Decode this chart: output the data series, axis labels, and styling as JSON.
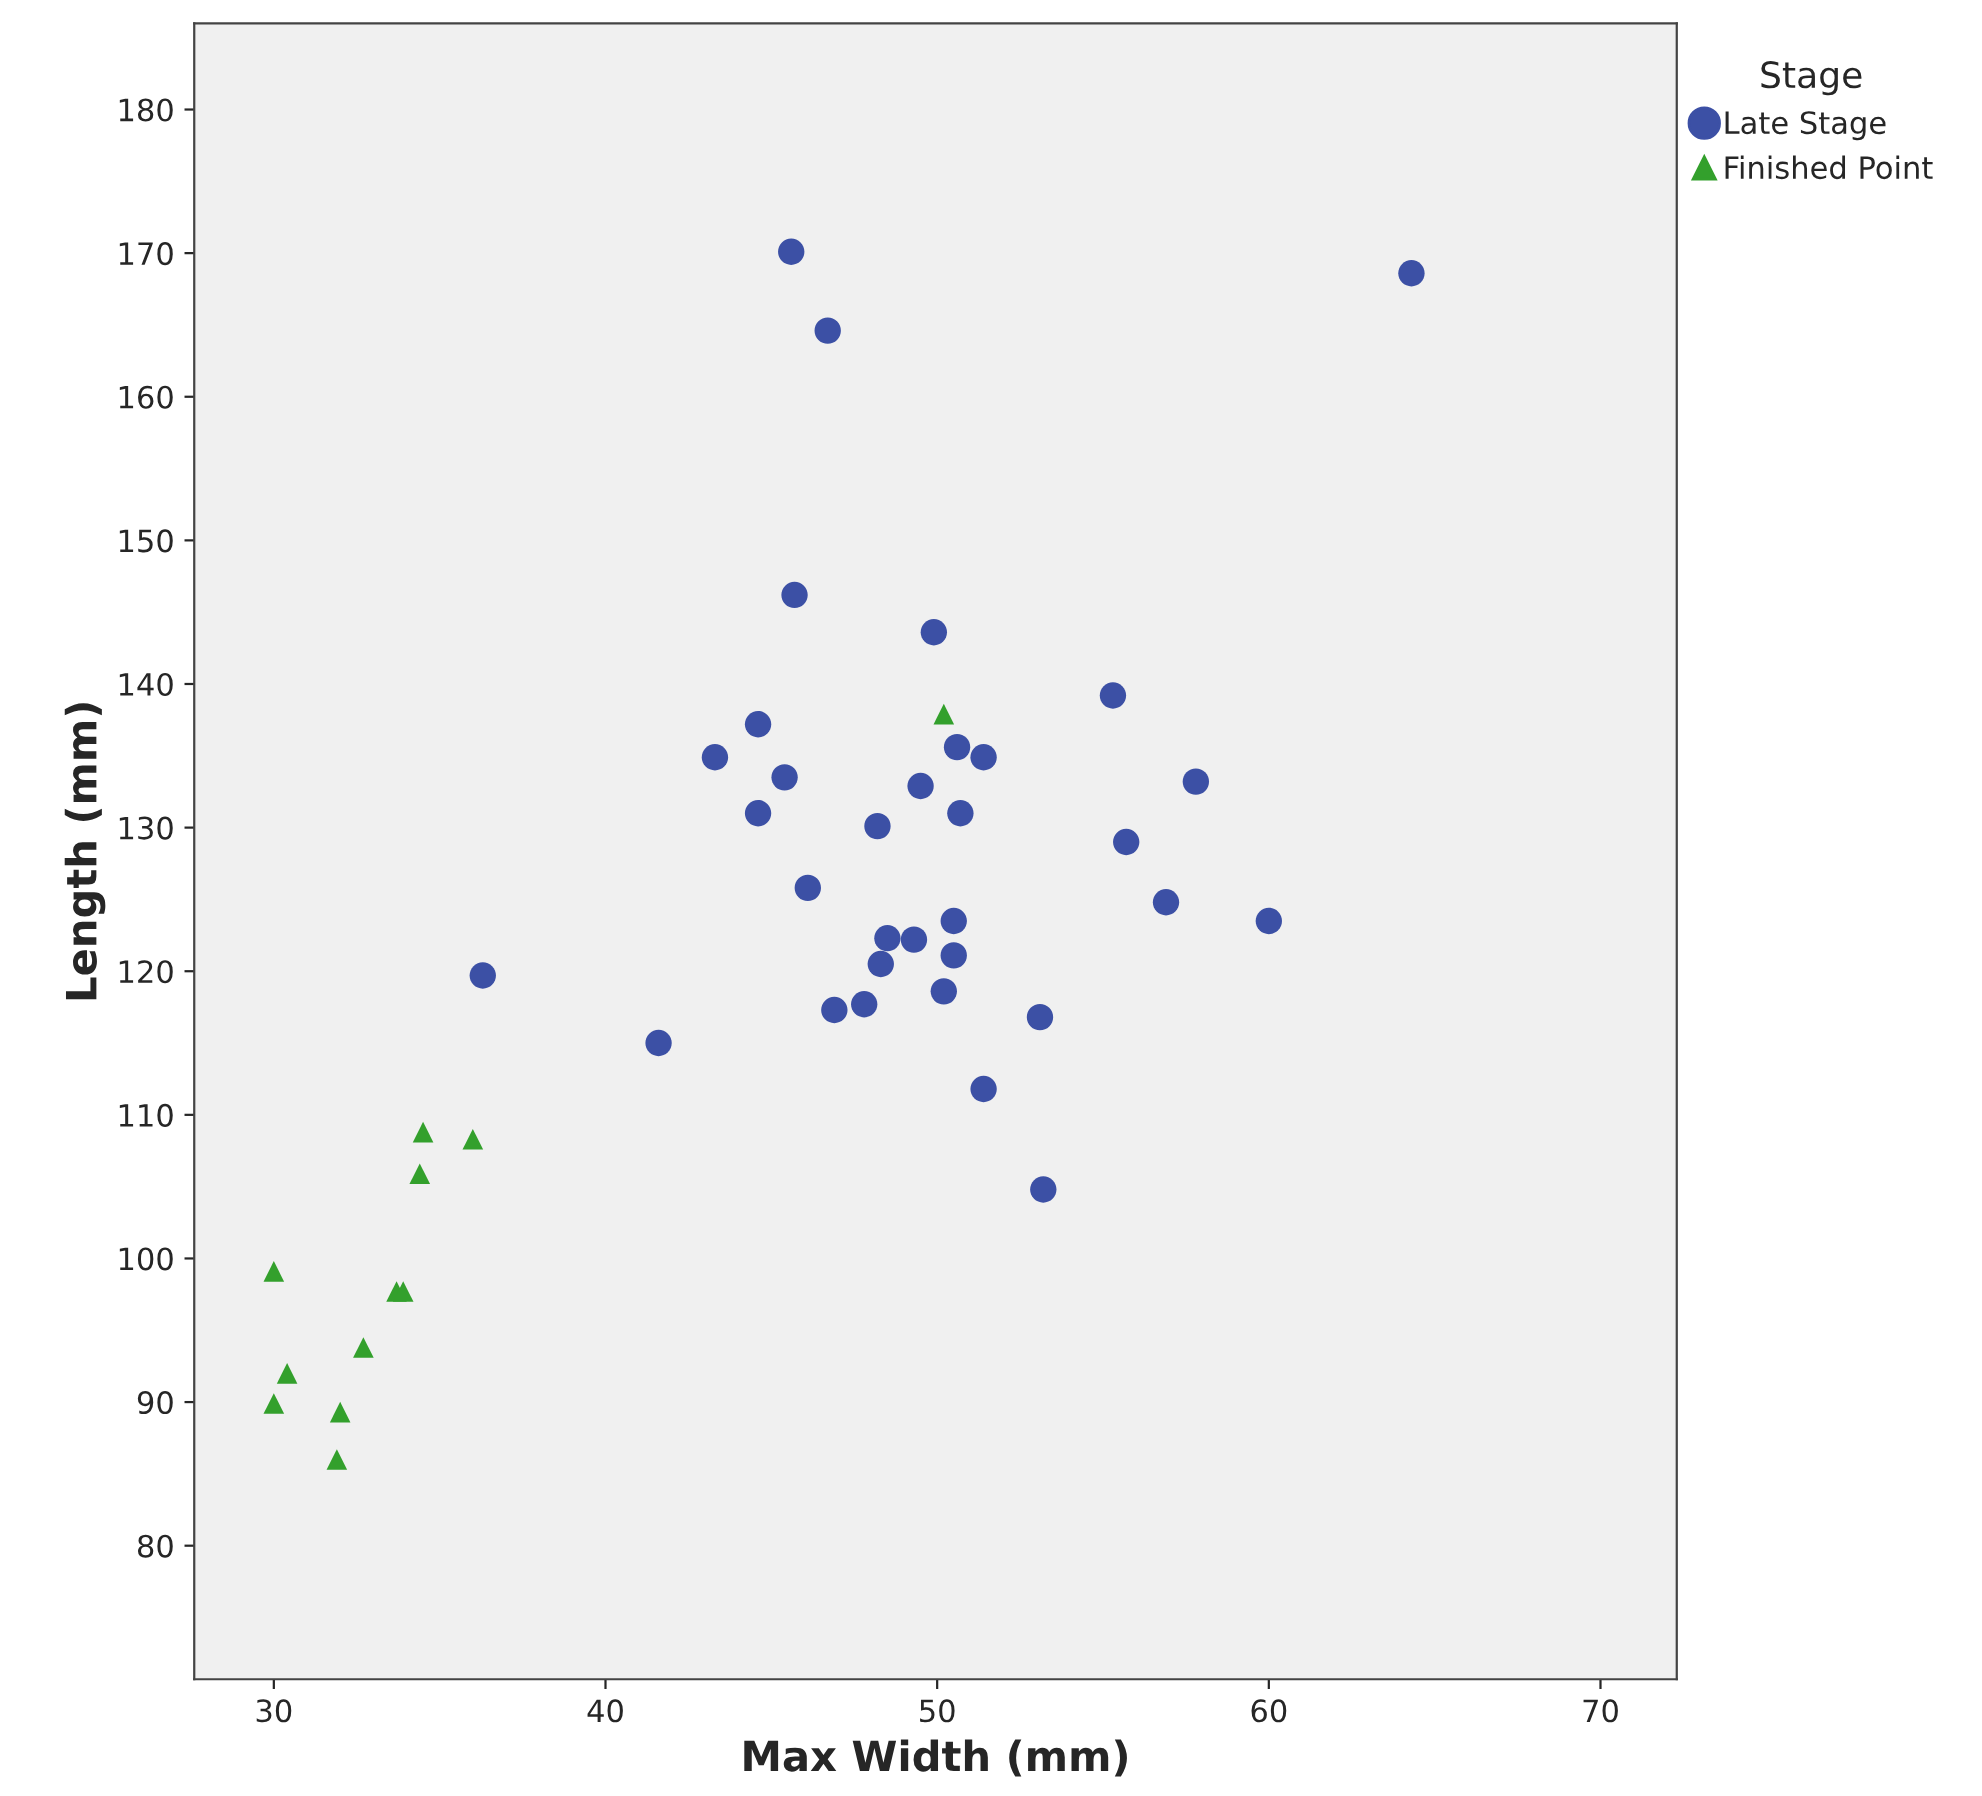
{
  "chart_data": {
    "type": "scatter",
    "xlabel": "Max Width (mm)",
    "ylabel": "Length (mm)",
    "legend_title": "Stage",
    "legend": "top right",
    "grid": false,
    "xlim": [
      27.6,
      72.3
    ],
    "ylim": [
      70.7,
      186
    ],
    "xticks": [
      30,
      40,
      50,
      60,
      70
    ],
    "yticks": [
      80,
      90,
      100,
      110,
      120,
      130,
      140,
      150,
      160,
      170,
      180
    ],
    "series": [
      {
        "name": "Late Stage",
        "color": "#3c50a5",
        "marker": "circle",
        "x": [
          45.6,
          64.3,
          46.7,
          45.7,
          49.9,
          55.3,
          43.3,
          44.6,
          45.4,
          44.6,
          49.5,
          50.6,
          51.4,
          50.7,
          57.8,
          48.2,
          55.7,
          46.1,
          56.9,
          60.0,
          50.5,
          48.5,
          49.3,
          48.3,
          50.5,
          36.3,
          50.2,
          47.8,
          46.9,
          53.1,
          41.6,
          51.4,
          53.2
        ],
        "values": [
          170.1,
          168.6,
          164.6,
          146.2,
          143.6,
          139.2,
          134.9,
          137.2,
          133.5,
          131.0,
          132.9,
          135.6,
          134.9,
          131.0,
          133.2,
          130.1,
          129.0,
          125.8,
          124.8,
          123.5,
          123.5,
          122.3,
          122.2,
          120.5,
          121.1,
          119.7,
          118.6,
          117.7,
          117.3,
          116.8,
          115.0,
          111.8,
          104.8
        ]
      },
      {
        "name": "Finished Point",
        "color": "#33a02c",
        "marker": "triangle",
        "x": [
          50.2,
          34.5,
          36.0,
          34.4,
          33.7,
          33.9,
          30.0,
          32.7,
          30.4,
          30.0,
          32.0,
          31.9
        ],
        "values": [
          137.9,
          108.8,
          108.3,
          105.9,
          97.7,
          97.7,
          99.1,
          93.8,
          92.0,
          89.9,
          89.3,
          86.0
        ]
      }
    ]
  }
}
